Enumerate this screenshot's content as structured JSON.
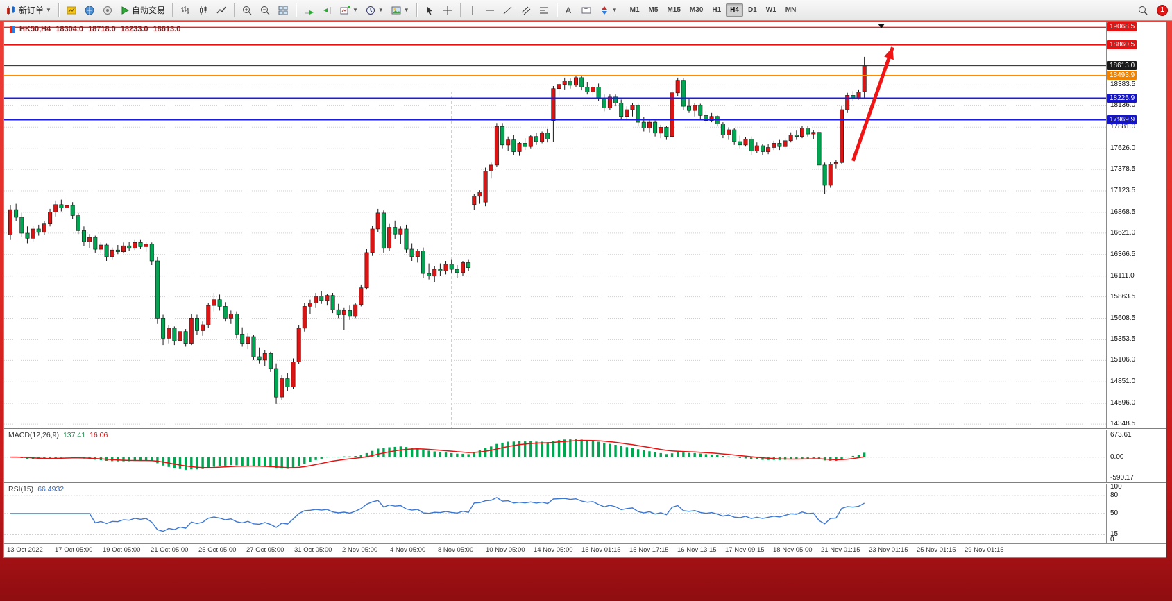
{
  "toolbar": {
    "new_order_label": "新订单",
    "auto_trading_label": "自动交易",
    "timeframes": [
      "M1",
      "M5",
      "M15",
      "M30",
      "H1",
      "H4",
      "D1",
      "W1",
      "MN"
    ],
    "active_timeframe": "H4",
    "notification_badge": "1"
  },
  "chart_data": {
    "type": "candlestick",
    "symbol": "HK50,H4",
    "ohlc_display": {
      "open": "18304.0",
      "high": "18718.0",
      "low": "18233.0",
      "close": "18613.0"
    },
    "up_color": "#dd1414",
    "down_color": "#00a651",
    "wick_color": "#1a1a1a",
    "price_range": [
      14300,
      19130
    ],
    "y_axis_ticks": [
      18383.5,
      18136.0,
      17881.0,
      17626.0,
      17378.5,
      17123.5,
      16868.5,
      16621.0,
      16366.5,
      16111.0,
      15863.5,
      15608.5,
      15353.5,
      15106.0,
      14851.0,
      14596.0,
      14348.5
    ],
    "levels": [
      {
        "price": 19068.5,
        "color": "#ff1a1a",
        "width": 1.5,
        "box": "#e81010"
      },
      {
        "price": 18860.5,
        "color": "#e81010",
        "width": 2,
        "box": "#e81010"
      },
      {
        "price": 18613.0,
        "color": "#222222",
        "width": 1,
        "box": "#1a1a1a"
      },
      {
        "price": 18493.9,
        "color": "#ff8a00",
        "width": 2,
        "box": "#f08300"
      },
      {
        "price": 18225.9,
        "color": "#1a1ae8",
        "width": 2,
        "box": "#1414cc"
      },
      {
        "price": 17969.9,
        "color": "#1a1ae8",
        "width": 2,
        "box": "#1414cc"
      }
    ],
    "x_labels": [
      "13 Oct 2022",
      "17 Oct 05:00",
      "19 Oct 05:00",
      "21 Oct 05:00",
      "25 Oct 05:00",
      "27 Oct 05:00",
      "31 Oct 05:00",
      "2 Nov 05:00",
      "4 Nov 05:00",
      "8 Nov 05:00",
      "10 Nov 05:00",
      "14 Nov 05:00",
      "15 Nov 01:15",
      "15 Nov 17:15",
      "16 Nov 13:15",
      "17 Nov 09:15",
      "18 Nov 05:00",
      "21 Nov 01:15",
      "23 Nov 01:15",
      "25 Nov 01:15",
      "29 Nov 01:15"
    ],
    "candles": [
      [
        16600,
        16950,
        16540,
        16900
      ],
      [
        16900,
        16970,
        16760,
        16810
      ],
      [
        16810,
        16860,
        16570,
        16620
      ],
      [
        16620,
        16700,
        16500,
        16560
      ],
      [
        16560,
        16710,
        16520,
        16670
      ],
      [
        16670,
        16720,
        16590,
        16630
      ],
      [
        16630,
        16760,
        16600,
        16730
      ],
      [
        16730,
        16910,
        16700,
        16870
      ],
      [
        16870,
        17010,
        16820,
        16960
      ],
      [
        16960,
        17020,
        16880,
        16920
      ],
      [
        16920,
        16990,
        16850,
        16950
      ],
      [
        16950,
        16990,
        16790,
        16830
      ],
      [
        16830,
        16860,
        16610,
        16650
      ],
      [
        16650,
        16700,
        16470,
        16520
      ],
      [
        16520,
        16610,
        16440,
        16570
      ],
      [
        16570,
        16590,
        16390,
        16430
      ],
      [
        16430,
        16520,
        16380,
        16480
      ],
      [
        16480,
        16500,
        16290,
        16340
      ],
      [
        16340,
        16450,
        16310,
        16420
      ],
      [
        16420,
        16480,
        16370,
        16400
      ],
      [
        16400,
        16510,
        16380,
        16470
      ],
      [
        16470,
        16520,
        16410,
        16440
      ],
      [
        16440,
        16540,
        16420,
        16510
      ],
      [
        16510,
        16540,
        16430,
        16460
      ],
      [
        16460,
        16520,
        16400,
        16490
      ],
      [
        16490,
        16510,
        16240,
        16290
      ],
      [
        16290,
        16340,
        15540,
        15610
      ],
      [
        15610,
        15650,
        15290,
        15370
      ],
      [
        15370,
        15530,
        15310,
        15490
      ],
      [
        15490,
        15510,
        15290,
        15340
      ],
      [
        15340,
        15490,
        15300,
        15450
      ],
      [
        15450,
        15480,
        15270,
        15310
      ],
      [
        15310,
        15660,
        15290,
        15610
      ],
      [
        15610,
        15650,
        15410,
        15460
      ],
      [
        15460,
        15570,
        15400,
        15530
      ],
      [
        15530,
        15790,
        15490,
        15760
      ],
      [
        15760,
        15910,
        15690,
        15830
      ],
      [
        15830,
        15890,
        15700,
        15750
      ],
      [
        15750,
        15800,
        15570,
        15610
      ],
      [
        15610,
        15700,
        15540,
        15660
      ],
      [
        15660,
        15690,
        15370,
        15420
      ],
      [
        15420,
        15500,
        15270,
        15310
      ],
      [
        15310,
        15430,
        15240,
        15390
      ],
      [
        15390,
        15410,
        15110,
        15150
      ],
      [
        15150,
        15260,
        15070,
        15110
      ],
      [
        15110,
        15230,
        15040,
        15190
      ],
      [
        15190,
        15210,
        14970,
        15010
      ],
      [
        15010,
        15070,
        14590,
        14670
      ],
      [
        14670,
        14930,
        14630,
        14890
      ],
      [
        14890,
        14960,
        14740,
        14790
      ],
      [
        14790,
        15130,
        14770,
        15090
      ],
      [
        15090,
        15530,
        15060,
        15490
      ],
      [
        15490,
        15790,
        15450,
        15750
      ],
      [
        15750,
        15830,
        15660,
        15790
      ],
      [
        15790,
        15910,
        15730,
        15870
      ],
      [
        15870,
        15930,
        15780,
        15820
      ],
      [
        15820,
        15900,
        15760,
        15880
      ],
      [
        15880,
        15910,
        15670,
        15710
      ],
      [
        15710,
        15780,
        15610,
        15650
      ],
      [
        15650,
        15730,
        15470,
        15700
      ],
      [
        15700,
        15760,
        15590,
        15630
      ],
      [
        15630,
        15790,
        15610,
        15770
      ],
      [
        15770,
        16010,
        15750,
        15970
      ],
      [
        15970,
        16430,
        15950,
        16390
      ],
      [
        16390,
        16710,
        16350,
        16670
      ],
      [
        16670,
        16910,
        16630,
        16860
      ],
      [
        16860,
        16890,
        16390,
        16440
      ],
      [
        16440,
        16730,
        16410,
        16690
      ],
      [
        16690,
        16770,
        16550,
        16610
      ],
      [
        16610,
        16700,
        16490,
        16670
      ],
      [
        16670,
        16720,
        16390,
        16430
      ],
      [
        16430,
        16500,
        16290,
        16340
      ],
      [
        16340,
        16430,
        16270,
        16410
      ],
      [
        16410,
        16450,
        16090,
        16140
      ],
      [
        16140,
        16260,
        16070,
        16110
      ],
      [
        16110,
        16230,
        16040,
        16190
      ],
      [
        16190,
        16260,
        16110,
        16170
      ],
      [
        16170,
        16290,
        16130,
        16250
      ],
      [
        16250,
        16310,
        16150,
        16190
      ],
      [
        16190,
        16240,
        16090,
        16150
      ],
      [
        16150,
        16290,
        16110,
        16270
      ],
      [
        16270,
        16310,
        16170,
        16210
      ],
      [
        16960,
        17090,
        16900,
        17060
      ],
      [
        17060,
        17130,
        16970,
        17110
      ],
      [
        16990,
        17400,
        16940,
        17360
      ],
      [
        17360,
        17460,
        17270,
        17430
      ],
      [
        17430,
        17930,
        17410,
        17890
      ],
      [
        17890,
        17930,
        17630,
        17670
      ],
      [
        17670,
        17770,
        17600,
        17730
      ],
      [
        17730,
        17790,
        17550,
        17590
      ],
      [
        17590,
        17710,
        17540,
        17690
      ],
      [
        17690,
        17750,
        17610,
        17650
      ],
      [
        17650,
        17790,
        17630,
        17770
      ],
      [
        17770,
        17810,
        17670,
        17710
      ],
      [
        17710,
        17830,
        17690,
        17810
      ],
      [
        17810,
        17860,
        17700,
        17740
      ],
      [
        17960,
        18370,
        17710,
        18340
      ],
      [
        18340,
        18410,
        18250,
        18390
      ],
      [
        18390,
        18470,
        18330,
        18430
      ],
      [
        18430,
        18460,
        18340,
        18380
      ],
      [
        18380,
        18500,
        18360,
        18470
      ],
      [
        18470,
        18490,
        18320,
        18360
      ],
      [
        18360,
        18420,
        18270,
        18300
      ],
      [
        18300,
        18390,
        18250,
        18360
      ],
      [
        18360,
        18400,
        18190,
        18230
      ],
      [
        18230,
        18270,
        18070,
        18110
      ],
      [
        18110,
        18270,
        18090,
        18240
      ],
      [
        18240,
        18270,
        18130,
        18170
      ],
      [
        18170,
        18210,
        17970,
        18010
      ],
      [
        18010,
        18130,
        17970,
        18090
      ],
      [
        18090,
        18170,
        18010,
        18140
      ],
      [
        18140,
        18160,
        17890,
        17940
      ],
      [
        17940,
        18000,
        17830,
        17870
      ],
      [
        17870,
        17970,
        17820,
        17940
      ],
      [
        17940,
        17960,
        17770,
        17810
      ],
      [
        17810,
        17910,
        17750,
        17880
      ],
      [
        17880,
        17900,
        17730,
        17770
      ],
      [
        17770,
        18320,
        17750,
        18290
      ],
      [
        18290,
        18470,
        18250,
        18440
      ],
      [
        18440,
        18460,
        18090,
        18130
      ],
      [
        18130,
        18230,
        18050,
        18080
      ],
      [
        18080,
        18170,
        18010,
        18140
      ],
      [
        18140,
        18160,
        17980,
        18020
      ],
      [
        18020,
        18070,
        17930,
        17960
      ],
      [
        17960,
        18050,
        17940,
        18010
      ],
      [
        18010,
        18030,
        17890,
        17920
      ],
      [
        17920,
        17940,
        17750,
        17790
      ],
      [
        17790,
        17880,
        17730,
        17850
      ],
      [
        17850,
        17870,
        17670,
        17710
      ],
      [
        17710,
        17780,
        17630,
        17670
      ],
      [
        17670,
        17760,
        17650,
        17740
      ],
      [
        17740,
        17770,
        17550,
        17600
      ],
      [
        17600,
        17700,
        17570,
        17660
      ],
      [
        17660,
        17680,
        17550,
        17590
      ],
      [
        17590,
        17680,
        17560,
        17640
      ],
      [
        17640,
        17720,
        17610,
        17690
      ],
      [
        17690,
        17730,
        17610,
        17650
      ],
      [
        17650,
        17750,
        17630,
        17720
      ],
      [
        17720,
        17820,
        17700,
        17790
      ],
      [
        17790,
        17840,
        17730,
        17770
      ],
      [
        17770,
        17900,
        17750,
        17870
      ],
      [
        17870,
        17900,
        17770,
        17800
      ],
      [
        17800,
        17850,
        17740,
        17820
      ],
      [
        17820,
        17840,
        17380,
        17430
      ],
      [
        17430,
        17460,
        17090,
        17190
      ],
      [
        17190,
        17470,
        17160,
        17440
      ],
      [
        17440,
        17490,
        17390,
        17460
      ],
      [
        17460,
        18130,
        17440,
        18090
      ],
      [
        18090,
        18290,
        18050,
        18260
      ],
      [
        18260,
        18310,
        18190,
        18230
      ],
      [
        18230,
        18330,
        18210,
        18300
      ],
      [
        18304,
        18718,
        18233,
        18613
      ]
    ],
    "vline_index": 78,
    "shift_marker_index": 154,
    "arrow": {
      "from": {
        "index": 149,
        "price": 17480
      },
      "to": {
        "index": 156,
        "price": 18830
      },
      "color": "#f01414"
    },
    "macd": {
      "name": "MACD(12,26,9)",
      "value_main": "137.41",
      "value_signal": "16.06",
      "fast": 12,
      "slow": 26,
      "signal": 9,
      "axis_ticks": [
        "673.61",
        "0.00",
        "-590.17"
      ],
      "range": [
        -700,
        760
      ],
      "hist_color": "#00a651",
      "signal_color": "#e81010"
    },
    "rsi": {
      "name": "RSI(15)",
      "value": "66.4932",
      "period": 15,
      "axis_ticks": [
        "100",
        "80",
        "50",
        "15",
        "0"
      ],
      "level_lines": [
        80,
        50,
        15
      ],
      "range": [
        0,
        100
      ],
      "line_color": "#3c78d2"
    }
  }
}
